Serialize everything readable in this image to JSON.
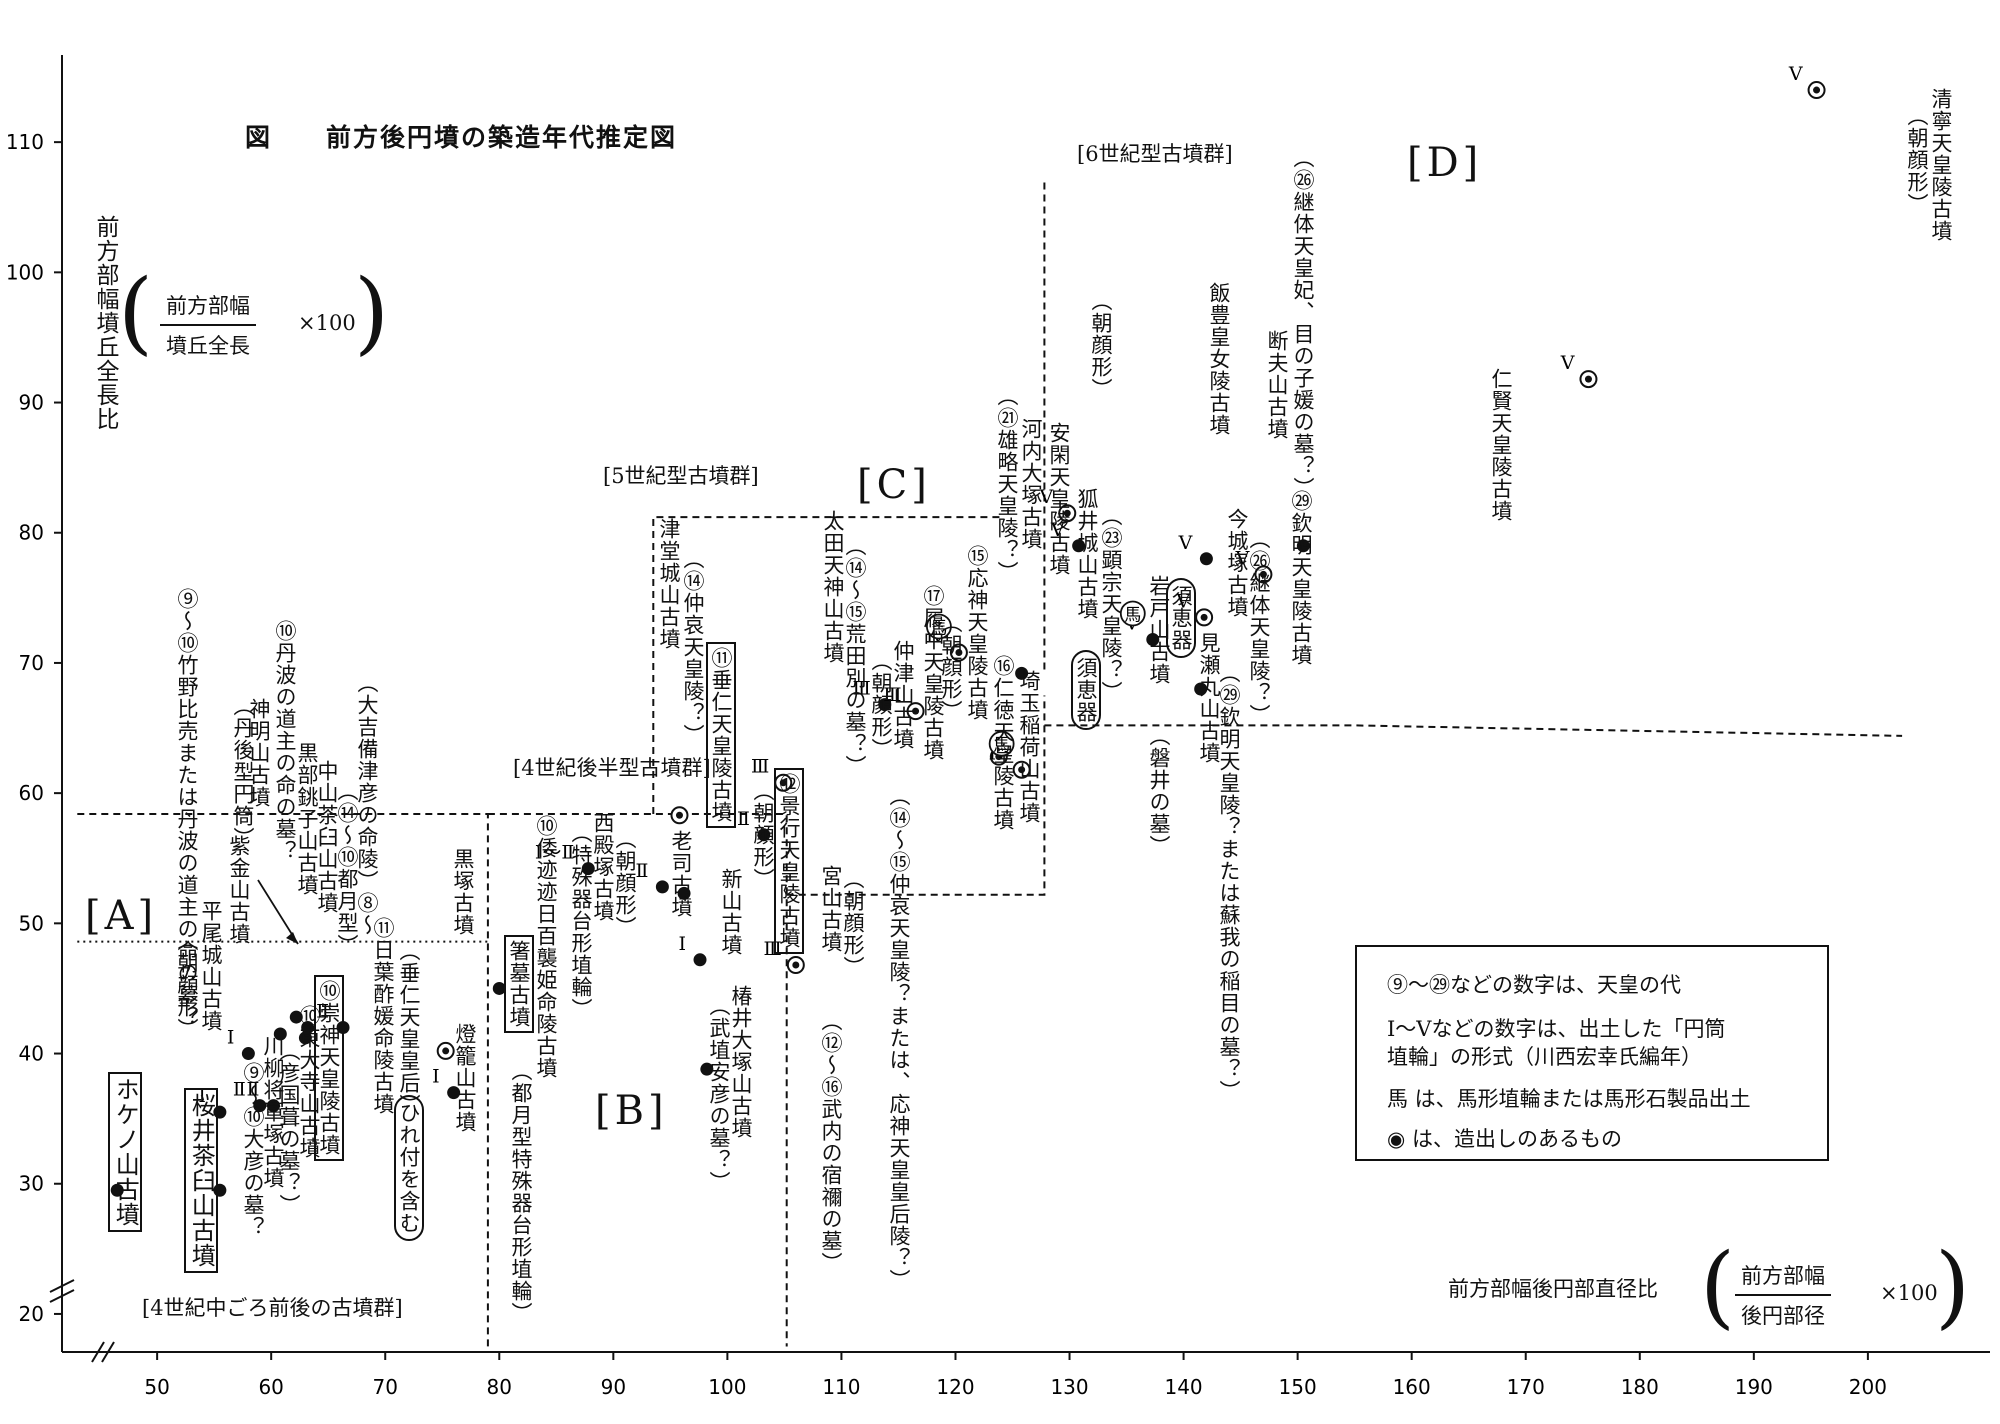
{
  "title": "図　　前方後円墳の築造年代推定図",
  "y_axis_label": "前方部幅墳丘全長比",
  "y_formula": {
    "numerator": "前方部幅",
    "denominator": "墳丘全長",
    "multiplier": "×100"
  },
  "x_axis_label": "前方部幅後円部直径比",
  "x_formula": {
    "numerator": "前方部幅",
    "denominator": "後円部径",
    "multiplier": "×100"
  },
  "groups": {
    "g4mid": "[4世紀中ごろ前後の古墳群]",
    "g4late": "[4世紀後半型古墳群]",
    "g5": "[5世紀型古墳群]",
    "g6": "[6世紀型古墳群]"
  },
  "regions": {
    "A": "[A]",
    "B": "[B]",
    "C": "[C]",
    "D": "[D]"
  },
  "legend": {
    "line1": "⑨～㉙などの数字は、天皇の代",
    "line2": "Ⅰ～Ⅴなどの数字は、出土した「円筒",
    "line3": "埴輪」の形式（川西宏幸氏編年）",
    "line4": "馬 は、馬形埴輪または馬形石製品出土",
    "line5": "◉ は、造出しのあるもの",
    "horse_symbol": "馬",
    "zoushutsu_symbol": "◉"
  },
  "chart_data": {
    "type": "scatter",
    "title": "図　　前方後円墳の築造年代推定図",
    "xlabel": "前方部幅後円部直径比",
    "ylabel": "前方部幅墳丘全長比",
    "xlim": [
      43,
      203
    ],
    "ylim": [
      17,
      112
    ],
    "x_ticks": [
      50,
      60,
      70,
      80,
      90,
      100,
      110,
      120,
      130,
      140,
      150,
      160,
      170,
      180,
      190,
      200
    ],
    "y_ticks": [
      20,
      30,
      40,
      50,
      60,
      70,
      80,
      90,
      100,
      110
    ],
    "grid": false,
    "points": [
      {
        "x": 46.5,
        "y": 29.5,
        "marker": "dot",
        "label": "ホケノ山古墳",
        "style": "boxed"
      },
      {
        "x": 55.5,
        "y": 29.5,
        "marker": "dot",
        "label": "桜井茶臼山古墳",
        "style": "boxed"
      },
      {
        "x": 55.5,
        "y": 35.5,
        "marker": "dot",
        "label": "平尾城山古墳（朝顔形）",
        "haniwa": "Ⅰ"
      },
      {
        "x": 58.0,
        "y": 40.0,
        "marker": "dot",
        "label": "紫金山古墳",
        "haniwa": "Ⅰ"
      },
      {
        "x": 59.0,
        "y": 36.0,
        "marker": "dot",
        "label": "⑨～⑩大彦の墓？",
        "haniwa": "Ⅱ"
      },
      {
        "x": 60.2,
        "y": 36.0,
        "marker": "dot",
        "label": "川柳将軍塚古墳",
        "haniwa": "Ⅱ"
      },
      {
        "x": 60.8,
        "y": 41.5,
        "marker": "dot",
        "label": "神明山古墳（丹後型円筒）"
      },
      {
        "x": 62.2,
        "y": 42.8,
        "marker": "dot",
        "label": "中山茶臼山古墳（⑭～⑩都月型）"
      },
      {
        "x": 63.0,
        "y": 41.2,
        "marker": "dot",
        "label": "⑩東大寺山古墳（彦国葺の墓？）"
      },
      {
        "x": 63.2,
        "y": 42.0,
        "marker": "dot",
        "label": "⑩崇神天皇陵古墳",
        "style": "boxed"
      },
      {
        "x": 66.3,
        "y": 42.0,
        "marker": "dot",
        "label": "⑪日葉酢媛命陵古墳",
        "haniwa": "Ⅱ"
      },
      {
        "x": 75.3,
        "y": 40.2,
        "marker": "dot-ring",
        "label": "黒塚古墳"
      },
      {
        "x": 76.0,
        "y": 37.0,
        "marker": "dot",
        "label": "燈籠山古墳",
        "haniwa": "Ⅰ"
      },
      {
        "x": 80.0,
        "y": 45.0,
        "marker": "dot",
        "label": "箸墓古墳（都月型特殊器台形埴輪）",
        "style": "boxed"
      },
      {
        "x": 87.8,
        "y": 54.2,
        "marker": "dot",
        "label": "西殿塚古墳（特殊器台形埴輪）",
        "haniwa": "Ⅰ～Ⅱ"
      },
      {
        "x": 94.3,
        "y": 52.8,
        "marker": "dot",
        "label": "老司古墳",
        "haniwa": "Ⅱ"
      },
      {
        "x": 96.2,
        "y": 52.3,
        "marker": "dot",
        "label": "⑪垂仁天皇陵古墳",
        "style": "boxed"
      },
      {
        "x": 95.8,
        "y": 58.3,
        "marker": "dot-ring",
        "label": "津堂城山古墳（⑭仲哀天皇陵？）"
      },
      {
        "x": 97.6,
        "y": 47.2,
        "marker": "dot",
        "label": "新山古墳",
        "haniwa": "Ⅰ"
      },
      {
        "x": 98.2,
        "y": 38.8,
        "marker": "dot",
        "label": "椿井大塚山古墳（武埴安彦の墓？）"
      },
      {
        "x": 103.2,
        "y": 56.8,
        "marker": "dot",
        "label": "⑫景行天皇陵古墳（朝顔形）",
        "haniwa": "Ⅱ",
        "style": "boxed"
      },
      {
        "x": 104.9,
        "y": 60.8,
        "marker": "dot-ring",
        "label": "",
        "haniwa": "Ⅲ"
      },
      {
        "x": 106.0,
        "y": 46.8,
        "marker": "dot-ring",
        "label": "宮山古墳（朝顔形）（⑫～⑯武内の宿禰の墓）",
        "haniwa": "Ⅲ"
      },
      {
        "x": 113.8,
        "y": 66.8,
        "marker": "dot",
        "label": "仲津山古墳（朝顔形）（⑭～⑮仲哀天皇陵？または、応神天皇皇后陵？）",
        "haniwa": "Ⅲ"
      },
      {
        "x": 116.5,
        "y": 66.3,
        "marker": "dot-ring",
        "label": "⑰履中天皇陵古墳（朝顔形）",
        "haniwa": "Ⅲ"
      },
      {
        "x": 120.3,
        "y": 70.8,
        "marker": "dot-ring",
        "label": "⑮応神天皇陵古墳",
        "haniwa": "Ⅳ",
        "horse": true
      },
      {
        "x": 123.8,
        "y": 62.8,
        "marker": "dot-ring",
        "label": "⑯仁徳天皇陵古墳"
      },
      {
        "x": 125.8,
        "y": 61.8,
        "marker": "dot-ring",
        "label": "埼玉稲荷山古墳㉑",
        "haniwa": "Ⅳ",
        "horse": true
      },
      {
        "x": 125.8,
        "y": 69.2,
        "marker": "dot",
        "label": "河内大塚古墳（㉑雄略天皇陵？）"
      },
      {
        "x": 129.8,
        "y": 81.5,
        "marker": "dot-ring",
        "label": "㉗安閑天皇陵古墳（朝顔形）",
        "haniwa": "Ⅴ"
      },
      {
        "x": 130.8,
        "y": 79.0,
        "marker": "dot",
        "label": "狐井城山古墳（㉓顕宗天皇陵？）（須恵器）",
        "haniwa": "Ⅴ"
      },
      {
        "x": 137.3,
        "y": 71.8,
        "marker": "dot",
        "label": "㉖岩戸山古墳（磐井の墓）（須恵器）",
        "haniwa": "Ⅴ",
        "horse": true
      },
      {
        "x": 142.0,
        "y": 78.0,
        "marker": "dot",
        "label": "㉓飯豊皇女陵古墳",
        "haniwa": "Ⅴ"
      },
      {
        "x": 141.8,
        "y": 73.5,
        "marker": "dot-ring",
        "label": "今城塚古墳（㉖継体天皇陵？）",
        "haniwa": "Ⅴ"
      },
      {
        "x": 141.5,
        "y": 68.0,
        "marker": "dot",
        "label": "見瀬丸山古墳（㉙欽明天皇陵？または蘇我の稲目の墓？）"
      },
      {
        "x": 147.0,
        "y": 76.8,
        "marker": "dot-ring",
        "label": "断夫山古墳（㉖継体天皇妃、目の子媛の墓？）",
        "haniwa": "Ⅴ"
      },
      {
        "x": 150.5,
        "y": 79.0,
        "marker": "dot",
        "label": "㉙欽明天皇陵古墳"
      },
      {
        "x": 175.5,
        "y": 91.8,
        "marker": "dot-ring",
        "label": "㉔仁賢天皇陵古墳",
        "haniwa": "Ⅴ"
      },
      {
        "x": 195.5,
        "y": 114.0,
        "marker": "dot-ring",
        "label": "㉒清寧天皇陵古墳（朝顔形）",
        "haniwa": "Ⅴ"
      }
    ]
  },
  "annotations": {
    "a_tanba": "⑨～⑩竹野比売または丹波の道主の命の墓？",
    "a_tango": "（丹後型円筒）",
    "a_shinmei": "神明山古墳",
    "a_shikin": "紫金山古墳",
    "a_hirao": "平尾城山古墳",
    "a_hirao_asa": "（朝顔形）",
    "a_tanba2": "⑩丹波の道主の命の墓？",
    "a_kurobe": "黒部銚子山古墳",
    "a_nakayama": "中山茶臼山古墳",
    "a_tsuki": "（⑭～⑩都月型）",
    "a_kibitsu": "（大吉備津彦の命陵）⑧～",
    "a_sujin": "⑩崇神天皇陵古墳",
    "a_todaiji": "⑩東大寺山古墳",
    "a_hiko": "（彦国葺の墓？）",
    "a_yanagi": "川柳将軍塚古墳",
    "a_ohiko": "⑨～⑩大彦の墓？",
    "a_hibasu": "⑪日葉酢媛命陵古墳",
    "a_suinin2": "（垂仁天皇皇后）",
    "a_hiretsuki": "ひれ付を含む",
    "a_kurozuka": "黒塚古墳",
    "a_toro": "燈籠山古墳",
    "a_hokenoyama": "ホケノ山古墳",
    "a_sakurai": "桜井茶臼山古墳",
    "a_hashihaka": "箸墓古墳",
    "a_hashi_sub": "（都月型特殊器台形埴輪）",
    "a_momoso": "⑩倭迹迹日百襲姫命陵古墳",
    "a_nishitono": "西殿塚古墳",
    "a_nishi_sub": "（特殊器台形埴輪）",
    "a_nishi_asa": "（朝顔形）",
    "a_roji": "老司古墳",
    "a_tsudo": "津堂城山古墳",
    "a_chuai": "（⑭仲哀天皇陵？）",
    "a_suinin": "⑪垂仁天皇陵古墳",
    "a_niiyama": "新山古墳",
    "a_tsubai": "椿井大塚山古墳",
    "a_takehani": "（武埴安彦の墓？）",
    "a_keiko": "⑫景行天皇陵古墳",
    "a_keiko_asa": "（朝顔形）",
    "a_miyayama": "宮山古墳",
    "a_miya_asa": "（朝顔形）",
    "a_takeuchi": "（⑫～⑯武内の宿禰の墓）",
    "a_ota": "太田天神山古墳",
    "a_araname": "（⑭～⑮荒田別の墓？）",
    "a_nakatsu": "仲津山古墳",
    "a_naka_asa": "（朝顔形）",
    "a_nakatsu_sub": "（⑭～⑮仲哀天皇陵？または、応神天皇皇后陵？）",
    "a_richu": "⑰履中天皇陵古墳",
    "a_richu_asa": "（朝顔形）",
    "a_ojin": "⑮応神天皇陵古墳",
    "a_nintoku": "⑯仁徳天皇陵古墳",
    "a_inari": "埼玉稲荷山古墳",
    "a_yuryaku": "（㉑雄略天皇陵？）",
    "a_kawachi": "河内大塚古墳",
    "a_ankan": "安閑天皇陵古墳",
    "a_ankan_asa": "（朝顔形）",
    "a_kitsune": "狐井城山古墳",
    "a_kenzo": "（㉓顕宗天皇陵？）",
    "a_sue1": "須恵器",
    "a_iwato": "岩戸山古墳",
    "a_iwai": "（磐井の墓）",
    "a_sue2": "須恵器",
    "a_iitoyo": "飯豊皇女陵古墳",
    "a_imashiro": "今城塚古墳",
    "a_keitai": "（㉖継体天皇陵？）",
    "a_mise": "見瀬丸山古墳",
    "a_mise_sub": "（㉙欽明天皇陵？または蘇我の稲目の墓？）",
    "a_danpu": "断夫山古墳",
    "a_menoko": "（㉖継体天皇妃、目の子媛の墓？）",
    "a_kinmei": "㉙欽明天皇陵古墳",
    "a_ninken": "仁賢天皇陵古墳",
    "a_seinei": "清寧天皇陵古墳",
    "a_seinei_asa": "（朝顔形）"
  },
  "colors": {
    "ink": "#111111",
    "background": "#ffffff"
  }
}
